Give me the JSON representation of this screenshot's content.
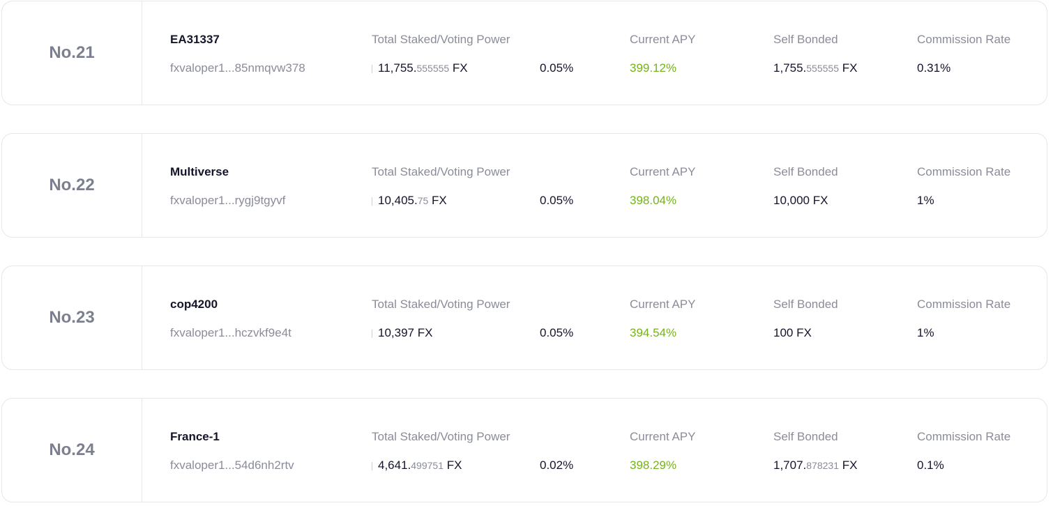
{
  "columns": {
    "staked": "Total Staked/Voting Power",
    "apy": "Current APY",
    "self_bonded": "Self Bonded",
    "commission": "Commission Rate"
  },
  "validators": [
    {
      "rank": "No.21",
      "name": "EA31337",
      "address": "fxvaloper1...85nmqvw378",
      "staked_int": "11,755.",
      "staked_dec": "555555",
      "staked_unit": " FX",
      "voting_power": "0.05%",
      "apy": "399.12%",
      "self_int": "1,755.",
      "self_dec": "555555",
      "self_unit": " FX",
      "commission": "0.31%"
    },
    {
      "rank": "No.22",
      "name": "Multiverse",
      "address": "fxvaloper1...rygj9tgyvf",
      "staked_int": "10,405.",
      "staked_dec": "75",
      "staked_unit": " FX",
      "voting_power": "0.05%",
      "apy": "398.04%",
      "self_int": "10,000 FX",
      "self_dec": "",
      "self_unit": "",
      "commission": "1%"
    },
    {
      "rank": "No.23",
      "name": "cop4200",
      "address": "fxvaloper1...hczvkf9e4t",
      "staked_int": "10,397 FX",
      "staked_dec": "",
      "staked_unit": "",
      "voting_power": "0.05%",
      "apy": "394.54%",
      "self_int": "100 FX",
      "self_dec": "",
      "self_unit": "",
      "commission": "1%"
    },
    {
      "rank": "No.24",
      "name": "France-1",
      "address": "fxvaloper1...54d6nh2rtv",
      "staked_int": "4,641.",
      "staked_dec": "499751",
      "staked_unit": " FX",
      "voting_power": "0.02%",
      "apy": "398.29%",
      "self_int": "1,707.",
      "self_dec": "878231",
      "self_unit": " FX",
      "commission": "0.1%"
    }
  ],
  "colors": {
    "apy_green": "#75b21b",
    "muted_text": "#8a8c99",
    "border": "#e6e7eb"
  }
}
